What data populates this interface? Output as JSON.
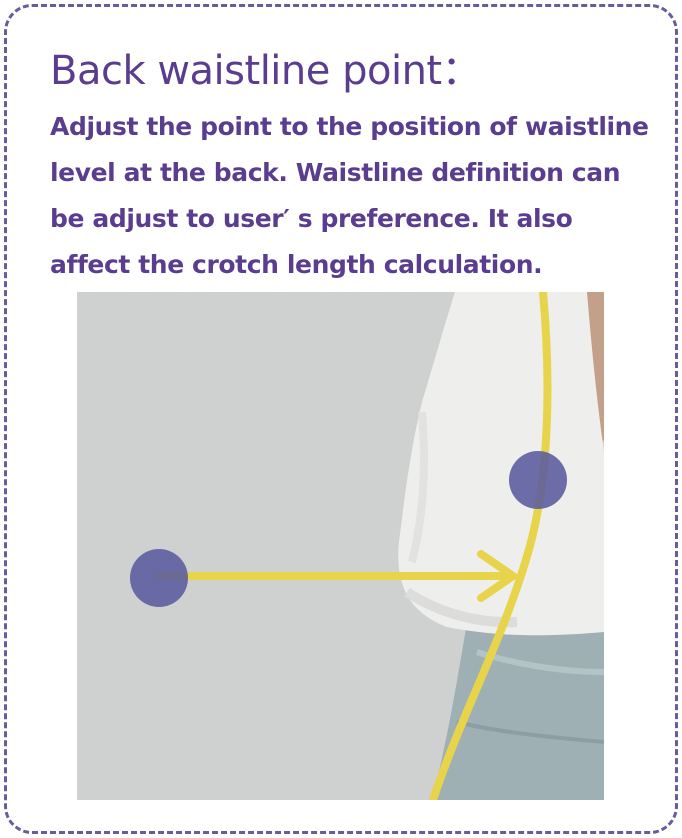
{
  "title": "Back waistline point：",
  "description": "Adjust the point to the position of waistline level at the back. Waistline definition can be adjust to user′ s preference. It also affect the crotch length calculation.",
  "colors": {
    "text": "#5a3d8f",
    "border": "#6a5a9e",
    "background_photo": "#cfd0d0",
    "shirt": "#eeeeec",
    "jeans": "#9fb0b4",
    "skin": "#c2a08a",
    "guide_line": "#e8d44a",
    "handle": "#5a5a9e"
  },
  "icons": {
    "source_handle": "circle-handle",
    "target_handle": "circle-handle",
    "arrow": "arrow-right"
  }
}
